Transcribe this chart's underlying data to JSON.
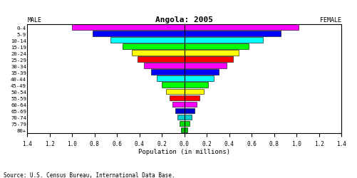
{
  "title": "Angola: 2005",
  "xlabel": "Population (in millions)",
  "source": "Source: U.S. Census Bureau, International Data Base.",
  "male_label": "MALE",
  "female_label": "FEMALE",
  "age_groups": [
    "80+",
    "75-79",
    "70-74",
    "65-69",
    "60-64",
    "55-59",
    "50-54",
    "45-49",
    "40-44",
    "35-39",
    "30-34",
    "25-29",
    "20-24",
    "15-19",
    "10-14",
    "5-9",
    "0-4"
  ],
  "male_values": [
    0.027,
    0.044,
    0.063,
    0.083,
    0.107,
    0.13,
    0.163,
    0.2,
    0.248,
    0.295,
    0.36,
    0.418,
    0.468,
    0.548,
    0.66,
    0.82,
    1.0
  ],
  "female_values": [
    0.03,
    0.048,
    0.068,
    0.09,
    0.113,
    0.138,
    0.172,
    0.213,
    0.265,
    0.31,
    0.378,
    0.435,
    0.488,
    0.575,
    0.7,
    0.86,
    1.02
  ],
  "colors": [
    "#00bb00",
    "#00dd00",
    "#00cccc",
    "#0000cc",
    "#ff00ff",
    "#ff0000",
    "#ffff00",
    "#00ff00",
    "#00ffff",
    "#0000ff",
    "#ff00ff",
    "#ff0000",
    "#ffff00",
    "#00ff00",
    "#00ffff",
    "#0000ff",
    "#ff00ff"
  ],
  "xlim": 1.4,
  "background_color": "#ffffff",
  "bar_height": 0.85
}
